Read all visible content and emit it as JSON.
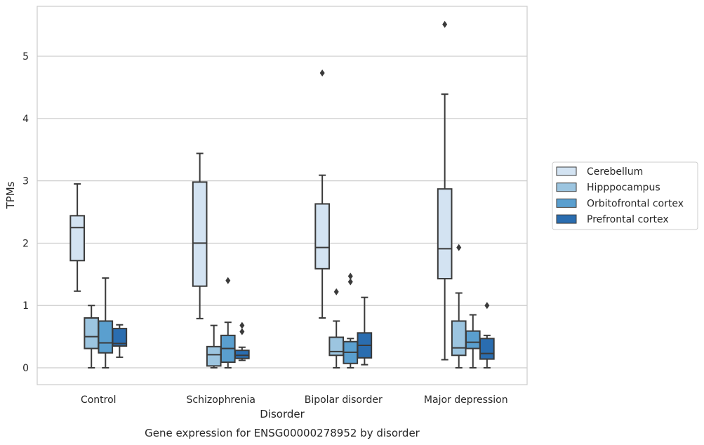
{
  "chart_data": {
    "type": "boxplot",
    "title": "",
    "caption": "Gene expression for ENSG00000278952 by disorder",
    "xlabel": "Disorder",
    "ylabel": "TPMs",
    "ylim": [
      -0.27,
      5.8
    ],
    "yticks": [
      0,
      1,
      2,
      3,
      4,
      5
    ],
    "grid": "horizontal",
    "legend_position": "right",
    "categories": [
      "Control",
      "Schizophrenia",
      "Bipolar disorder",
      "Major depression"
    ],
    "series": [
      {
        "name": "Cerebellum",
        "color": "#d3e3f2",
        "boxes": [
          {
            "whislo": 1.23,
            "q1": 1.72,
            "med": 2.25,
            "q3": 2.44,
            "whishi": 2.95,
            "fliers": []
          },
          {
            "whislo": 0.79,
            "q1": 1.31,
            "med": 2.0,
            "q3": 2.98,
            "whishi": 3.44,
            "fliers": []
          },
          {
            "whislo": 0.8,
            "q1": 1.59,
            "med": 1.93,
            "q3": 2.63,
            "whishi": 3.09,
            "fliers": [
              4.73
            ]
          },
          {
            "whislo": 0.13,
            "q1": 1.43,
            "med": 1.91,
            "q3": 2.87,
            "whishi": 4.39,
            "fliers": [
              5.51
            ]
          }
        ]
      },
      {
        "name": "Hipppocampus",
        "color": "#9cc5e0",
        "boxes": [
          {
            "whislo": 0.0,
            "q1": 0.31,
            "med": 0.5,
            "q3": 0.8,
            "whishi": 1.0,
            "fliers": []
          },
          {
            "whislo": 0.0,
            "q1": 0.03,
            "med": 0.21,
            "q3": 0.34,
            "whishi": 0.68,
            "fliers": []
          },
          {
            "whislo": 0.0,
            "q1": 0.2,
            "med": 0.26,
            "q3": 0.49,
            "whishi": 0.75,
            "fliers": [
              1.22
            ]
          },
          {
            "whislo": 0.0,
            "q1": 0.2,
            "med": 0.32,
            "q3": 0.75,
            "whishi": 1.2,
            "fliers": [
              1.93
            ]
          }
        ]
      },
      {
        "name": "Orbitofrontal cortex",
        "color": "#5a9fcf",
        "boxes": [
          {
            "whislo": 0.0,
            "q1": 0.24,
            "med": 0.4,
            "q3": 0.75,
            "whishi": 1.44,
            "fliers": []
          },
          {
            "whislo": 0.0,
            "q1": 0.09,
            "med": 0.31,
            "q3": 0.52,
            "whishi": 0.73,
            "fliers": [
              1.4
            ]
          },
          {
            "whislo": 0.0,
            "q1": 0.07,
            "med": 0.25,
            "q3": 0.42,
            "whishi": 0.47,
            "fliers": [
              1.38,
              1.47
            ]
          },
          {
            "whislo": 0.0,
            "q1": 0.31,
            "med": 0.41,
            "q3": 0.59,
            "whishi": 0.85,
            "fliers": []
          }
        ]
      },
      {
        "name": "Prefrontal cortex",
        "color": "#2a6db0",
        "boxes": [
          {
            "whislo": 0.17,
            "q1": 0.35,
            "med": 0.39,
            "q3": 0.63,
            "whishi": 0.69,
            "fliers": []
          },
          {
            "whislo": 0.12,
            "q1": 0.15,
            "med": 0.2,
            "q3": 0.28,
            "whishi": 0.33,
            "fliers": [
              0.58,
              0.68
            ]
          },
          {
            "whislo": 0.05,
            "q1": 0.16,
            "med": 0.36,
            "q3": 0.56,
            "whishi": 1.13,
            "fliers": []
          },
          {
            "whislo": 0.0,
            "q1": 0.14,
            "med": 0.23,
            "q3": 0.47,
            "whishi": 0.52,
            "fliers": [
              1.0
            ]
          }
        ]
      }
    ]
  }
}
